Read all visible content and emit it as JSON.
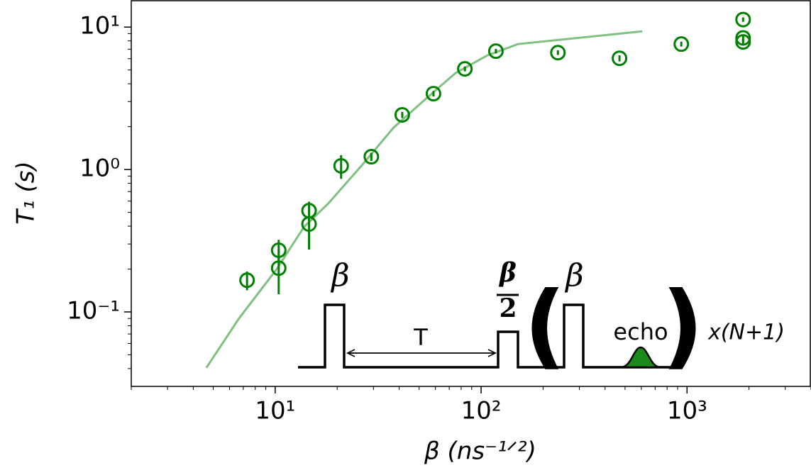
{
  "chart_data": {
    "type": "scatter",
    "xlabel": "β (ns⁻¹ᐟ²)",
    "ylabel": "T₁ (s)",
    "xscale": "log",
    "yscale": "log",
    "xlim": [
      2,
      4000
    ],
    "ylim": [
      0.03,
      15.5
    ],
    "xticks": [
      {
        "value": 10,
        "label": "10¹"
      },
      {
        "value": 100,
        "label": "10²"
      },
      {
        "value": 1000,
        "label": "10³"
      }
    ],
    "yticks": [
      {
        "value": 0.1,
        "label": "10⁻¹"
      },
      {
        "value": 1,
        "label": "10⁰"
      },
      {
        "value": 10,
        "label": "10¹"
      }
    ],
    "xminorticks": [
      2,
      3,
      4,
      5,
      6,
      7,
      8,
      9,
      20,
      30,
      40,
      50,
      60,
      70,
      80,
      90,
      200,
      300,
      400,
      500,
      600,
      700,
      800,
      900,
      2000,
      3000,
      4000
    ],
    "yminorticks": [
      0.04,
      0.05,
      0.06,
      0.07,
      0.08,
      0.09,
      0.2,
      0.3,
      0.4,
      0.5,
      0.6,
      0.7,
      0.8,
      0.9,
      2,
      3,
      4,
      5,
      6,
      7,
      8,
      9
    ],
    "points": {
      "color": "#008000",
      "x": [
        7.3,
        10.4,
        10.4,
        14.6,
        14.6,
        20.9,
        29.3,
        41.4,
        58.7,
        83.4,
        118,
        236,
        470,
        938,
        1872,
        1872,
        1872
      ],
      "y": [
        0.167,
        0.271,
        0.203,
        0.514,
        0.414,
        1.06,
        1.23,
        2.42,
        3.41,
        5.09,
        6.78,
        6.62,
        6.04,
        7.6,
        11.3,
        8.4,
        7.87
      ],
      "yerr": [
        0.025,
        0.05,
        0.07,
        0.08,
        0.14,
        0.2,
        0.08,
        0.12,
        0.15,
        0.2,
        0.25,
        0.25,
        0.3,
        0.3,
        0.4,
        0.4,
        0.4
      ]
    },
    "line": {
      "color": "#80c080",
      "x": [
        4.63,
        6.67,
        10.2,
        13.8,
        18.1,
        26.5,
        37.6,
        53,
        75,
        107,
        151,
        606
      ],
      "y": [
        0.0405,
        0.09,
        0.201,
        0.395,
        0.577,
        1.08,
        1.97,
        3.07,
        4.75,
        6.32,
        7.6,
        9.34
      ]
    },
    "inset": {
      "pulse_label": "β",
      "half_pulse_numerator": "β",
      "half_pulse_denominator": "2",
      "delay_label": "T",
      "open_paren": "(",
      "repeat_pulse_label": "β",
      "echo_label": "echo",
      "close_paren": ")",
      "repeat_label": "x(N+1)"
    }
  }
}
